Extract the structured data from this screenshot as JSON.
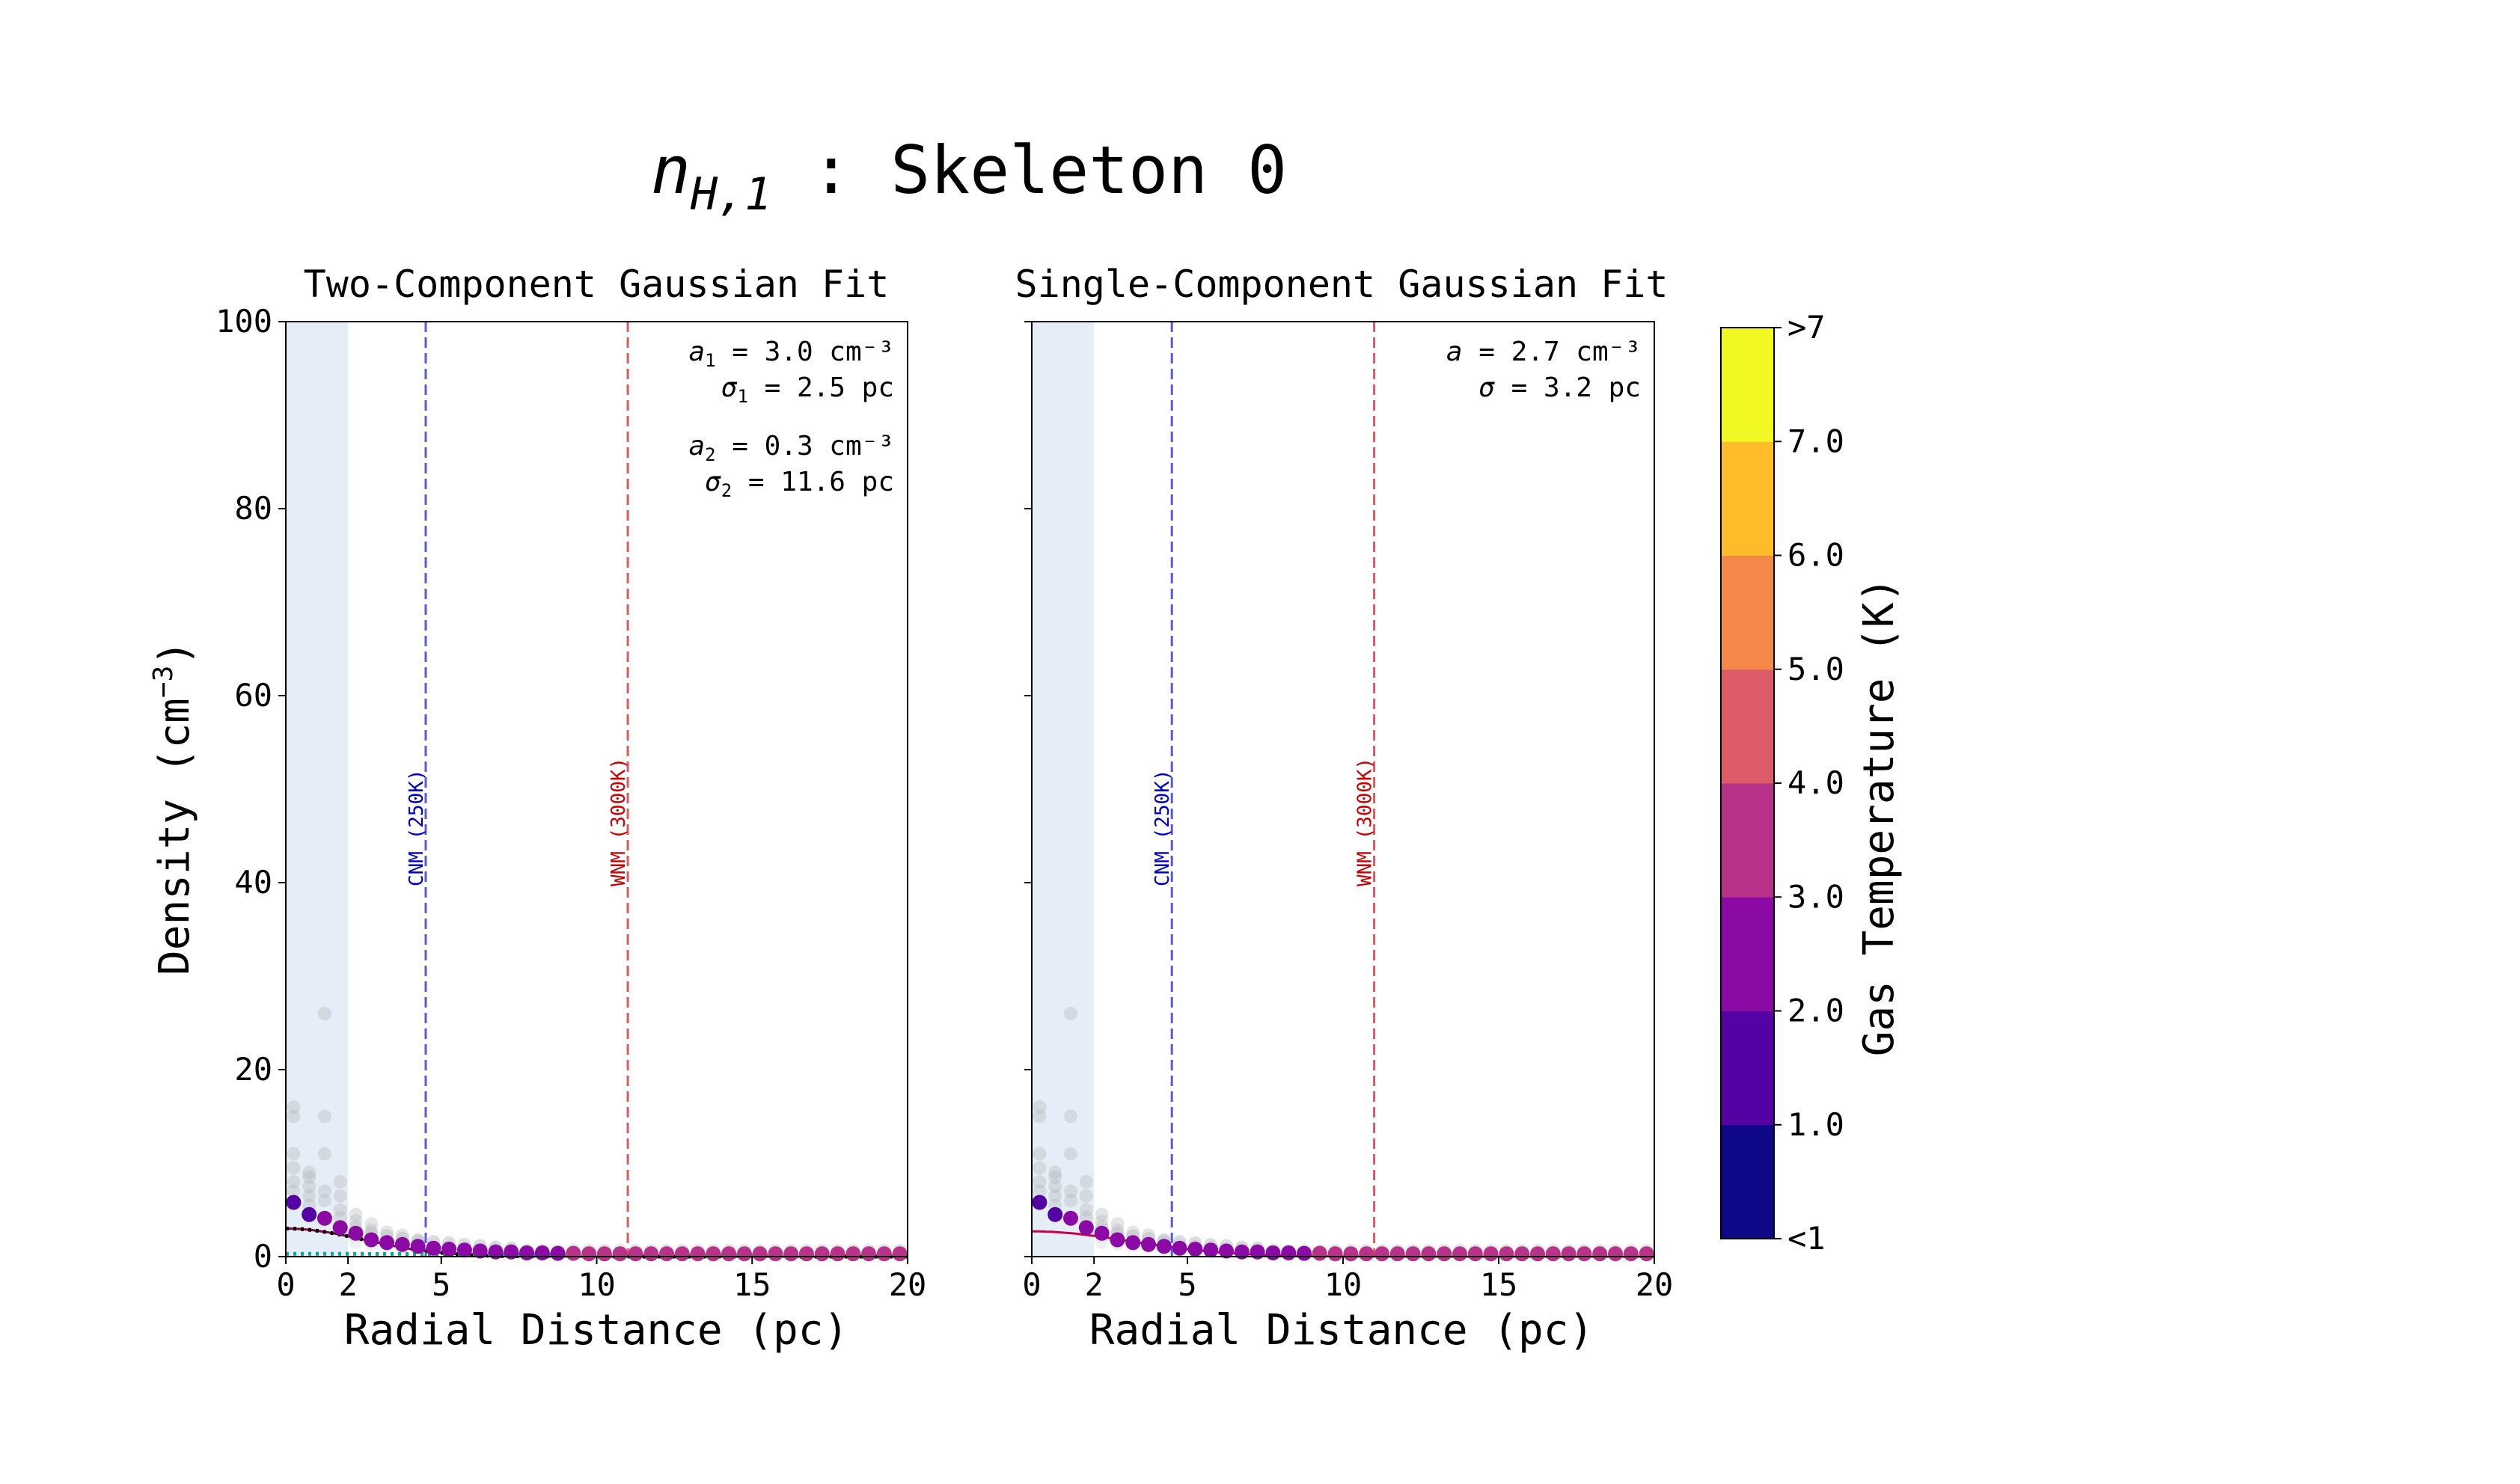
{
  "figure": {
    "suptitle_math": "n",
    "suptitle_sub": "H,1",
    "suptitle_text": " : Skeleton 0"
  },
  "colorbar": {
    "label": "Gas Temperature (K)",
    "ticks": [
      "<1",
      "1.0",
      "2.0",
      "3.0",
      "4.0",
      "5.0",
      "6.0",
      "7.0",
      ">7"
    ],
    "colors": [
      "#0d0887",
      "#5402a3",
      "#8b0aa5",
      "#b83289",
      "#db5c68",
      "#f48849",
      "#febc2a",
      "#f0f921"
    ]
  },
  "chart_data": [
    {
      "type": "scatter",
      "title": "Two-Component Gaussian Fit",
      "xlabel": "Radial Distance (pc)",
      "ylabel": "Density (cm",
      "ylabel_sup": "−3",
      "ylabel_end": ")",
      "xlim": [
        0,
        20
      ],
      "ylim": [
        0,
        100
      ],
      "xticks": [
        "0",
        "2",
        "5",
        "10",
        "15",
        "20"
      ],
      "xtick_values": [
        0,
        2,
        5,
        10,
        15,
        20
      ],
      "yticks": [
        "0",
        "20",
        "40",
        "60",
        "80",
        "100"
      ],
      "ytick_values": [
        0,
        20,
        40,
        60,
        80,
        100
      ],
      "shaded_region": [
        0,
        2
      ],
      "vlines": [
        {
          "x": 4.5,
          "label": "CNM (250K)",
          "color": "#0000cc"
        },
        {
          "x": 11.0,
          "label": "WNM (3000K)",
          "color": "#cc0000"
        }
      ],
      "annotations": [
        {
          "sym": "a",
          "sub": "1",
          "text": " = 3.0 cm⁻³"
        },
        {
          "sym": "σ",
          "sub": "1",
          "text": " = 2.5 pc"
        },
        {
          "sym": "a",
          "sub": "2",
          "text": " = 0.3 cm⁻³"
        },
        {
          "sym": "σ",
          "sub": "2",
          "text": " = 11.6 pc"
        }
      ],
      "mean_profile": {
        "x": [
          0.25,
          0.75,
          1.25,
          1.75,
          2.25,
          2.75,
          3.25,
          3.75,
          4.25,
          4.75,
          5.25,
          5.75,
          6.25,
          6.75,
          7.25,
          7.75,
          8.25,
          8.75,
          9.25,
          9.75,
          10.25,
          10.75,
          11.25,
          11.75,
          12.25,
          12.75,
          13.25,
          13.75,
          14.25,
          14.75,
          15.25,
          15.75,
          16.25,
          16.75,
          17.25,
          17.75,
          18.25,
          18.75,
          19.25,
          19.75
        ],
        "y": [
          5.8,
          4.5,
          4.1,
          3.1,
          2.5,
          1.8,
          1.5,
          1.3,
          1.1,
          0.9,
          0.8,
          0.7,
          0.6,
          0.5,
          0.5,
          0.4,
          0.4,
          0.35,
          0.35,
          0.3,
          0.3,
          0.3,
          0.3,
          0.3,
          0.3,
          0.3,
          0.3,
          0.3,
          0.3,
          0.3,
          0.3,
          0.3,
          0.3,
          0.3,
          0.3,
          0.3,
          0.3,
          0.3,
          0.3,
          0.3
        ],
        "temperature_K": [
          1.5,
          1.5,
          2.0,
          2.2,
          2.3,
          2.4,
          2.5,
          2.5,
          2.5,
          2.6,
          2.6,
          2.6,
          2.7,
          2.7,
          2.8,
          2.8,
          2.9,
          2.9,
          3.0,
          3.0,
          3.1,
          3.1,
          3.2,
          3.2,
          3.2,
          3.3,
          3.3,
          3.3,
          3.4,
          3.4,
          3.4,
          3.4,
          3.5,
          3.5,
          3.5,
          3.5,
          3.6,
          3.6,
          3.6,
          3.6
        ]
      },
      "background_points": {
        "x": [
          0.25,
          0.25,
          0.25,
          0.25,
          0.25,
          0.25,
          0.75,
          0.75,
          0.75,
          0.75,
          0.75,
          1.25,
          1.25,
          1.25,
          1.25,
          1.25,
          1.75,
          1.75,
          1.75,
          1.75,
          2.25,
          2.25,
          2.25,
          2.75,
          2.75,
          2.75,
          3.25,
          3.25,
          3.75,
          3.75,
          4.25,
          4.25,
          4.75,
          5.25,
          5.75,
          6.25,
          6.75,
          7.25
        ],
        "y": [
          16.0,
          15.0,
          11.0,
          9.5,
          8.0,
          7.0,
          8.5,
          7.5,
          6.5,
          9.0,
          5.5,
          26.0,
          15.0,
          11.0,
          7.0,
          6.0,
          8.0,
          6.5,
          5.0,
          4.2,
          4.5,
          3.8,
          3.2,
          3.5,
          2.8,
          2.4,
          2.6,
          2.2,
          2.3,
          1.9,
          1.8,
          1.6,
          1.6,
          1.5,
          1.3,
          1.2,
          1.0,
          0.9
        ]
      },
      "fit_curves": [
        {
          "name": "fit",
          "color": "#800040",
          "style": "solid",
          "a": 3.0,
          "sigma": 2.5
        },
        {
          "name": "component 1",
          "color": "#000000",
          "style": "dotted",
          "a": 3.0,
          "sigma": 2.5
        },
        {
          "name": "component 2",
          "color": "#00aa99",
          "style": "dotted",
          "a": 0.3,
          "sigma": 11.6
        }
      ]
    },
    {
      "type": "scatter",
      "title": "Single-Component Gaussian Fit",
      "xlabel": "Radial Distance (pc)",
      "xlim": [
        0,
        20
      ],
      "ylim": [
        0,
        100
      ],
      "xticks": [
        "0",
        "2",
        "5",
        "10",
        "15",
        "20"
      ],
      "xtick_values": [
        0,
        2,
        5,
        10,
        15,
        20
      ],
      "ytick_values": [
        0,
        20,
        40,
        60,
        80,
        100
      ],
      "shaded_region": [
        0,
        2
      ],
      "vlines": [
        {
          "x": 4.5,
          "label": "CNM (250K)",
          "color": "#0000cc"
        },
        {
          "x": 11.0,
          "label": "WNM (3000K)",
          "color": "#cc0000"
        }
      ],
      "annotations": [
        {
          "sym": "a",
          "sub": "",
          "text": " = 2.7 cm⁻³"
        },
        {
          "sym": "σ",
          "sub": "",
          "text": " = 3.2 pc"
        }
      ],
      "mean_profile": {
        "x": [
          0.25,
          0.75,
          1.25,
          1.75,
          2.25,
          2.75,
          3.25,
          3.75,
          4.25,
          4.75,
          5.25,
          5.75,
          6.25,
          6.75,
          7.25,
          7.75,
          8.25,
          8.75,
          9.25,
          9.75,
          10.25,
          10.75,
          11.25,
          11.75,
          12.25,
          12.75,
          13.25,
          13.75,
          14.25,
          14.75,
          15.25,
          15.75,
          16.25,
          16.75,
          17.25,
          17.75,
          18.25,
          18.75,
          19.25,
          19.75
        ],
        "y": [
          5.8,
          4.5,
          4.1,
          3.1,
          2.5,
          1.8,
          1.5,
          1.3,
          1.1,
          0.9,
          0.8,
          0.7,
          0.6,
          0.5,
          0.5,
          0.4,
          0.4,
          0.35,
          0.35,
          0.3,
          0.3,
          0.3,
          0.3,
          0.3,
          0.3,
          0.3,
          0.3,
          0.3,
          0.3,
          0.3,
          0.3,
          0.3,
          0.3,
          0.3,
          0.3,
          0.3,
          0.3,
          0.3,
          0.3,
          0.3
        ],
        "temperature_K": [
          1.5,
          1.5,
          2.0,
          2.2,
          2.3,
          2.4,
          2.5,
          2.5,
          2.5,
          2.6,
          2.6,
          2.6,
          2.7,
          2.7,
          2.8,
          2.8,
          2.9,
          2.9,
          3.0,
          3.0,
          3.1,
          3.1,
          3.2,
          3.2,
          3.2,
          3.3,
          3.3,
          3.3,
          3.4,
          3.4,
          3.4,
          3.4,
          3.5,
          3.5,
          3.5,
          3.5,
          3.6,
          3.6,
          3.6,
          3.6
        ]
      },
      "background_points": {
        "x": [
          0.25,
          0.25,
          0.25,
          0.25,
          0.25,
          0.25,
          0.75,
          0.75,
          0.75,
          0.75,
          0.75,
          1.25,
          1.25,
          1.25,
          1.25,
          1.25,
          1.75,
          1.75,
          1.75,
          1.75,
          2.25,
          2.25,
          2.25,
          2.75,
          2.75,
          2.75,
          3.25,
          3.25,
          3.75,
          3.75,
          4.25,
          4.25,
          4.75,
          5.25,
          5.75,
          6.25,
          6.75,
          7.25
        ],
        "y": [
          16.0,
          15.0,
          11.0,
          9.5,
          8.0,
          7.0,
          8.5,
          7.5,
          6.5,
          9.0,
          5.5,
          26.0,
          15.0,
          11.0,
          7.0,
          6.0,
          8.0,
          6.5,
          5.0,
          4.2,
          4.5,
          3.8,
          3.2,
          3.5,
          2.8,
          2.4,
          2.6,
          2.2,
          2.3,
          1.9,
          1.8,
          1.6,
          1.6,
          1.5,
          1.3,
          1.2,
          1.0,
          0.9
        ]
      },
      "fit_curves": [
        {
          "name": "fit",
          "color": "#cc0044",
          "style": "solid",
          "a": 2.7,
          "sigma": 3.2
        }
      ]
    }
  ]
}
